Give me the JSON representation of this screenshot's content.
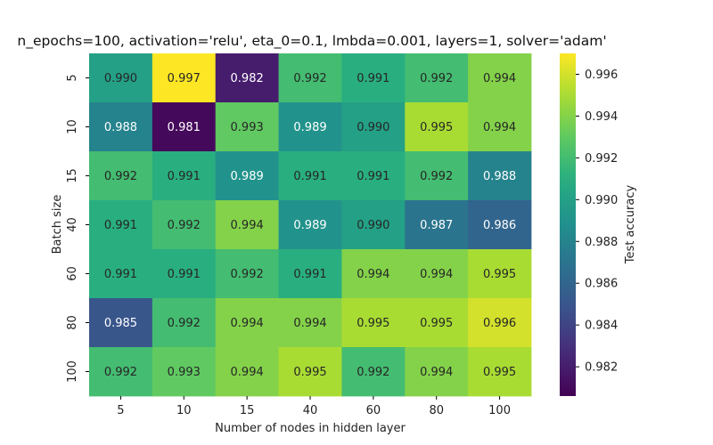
{
  "chart_data": {
    "type": "heatmap",
    "title": "n_epochs=100, activation='relu', eta_0=0.1, lmbda=0.001, layers=1, solver='adam'",
    "xlabel": "Number of nodes in hidden layer",
    "ylabel": "Batch size",
    "colorbar_label": "Test accuracy",
    "x": [
      "5",
      "10",
      "15",
      "40",
      "60",
      "80",
      "100"
    ],
    "y": [
      "5",
      "10",
      "15",
      "40",
      "60",
      "80",
      "100"
    ],
    "values": [
      [
        0.99,
        0.997,
        0.982,
        0.992,
        0.991,
        0.992,
        0.994
      ],
      [
        0.988,
        0.981,
        0.993,
        0.989,
        0.99,
        0.995,
        0.994
      ],
      [
        0.992,
        0.991,
        0.989,
        0.991,
        0.991,
        0.992,
        0.988
      ],
      [
        0.991,
        0.992,
        0.994,
        0.989,
        0.99,
        0.987,
        0.986
      ],
      [
        0.991,
        0.991,
        0.992,
        0.991,
        0.994,
        0.994,
        0.995
      ],
      [
        0.985,
        0.992,
        0.994,
        0.994,
        0.995,
        0.995,
        0.996
      ],
      [
        0.992,
        0.993,
        0.994,
        0.995,
        0.992,
        0.994,
        0.995
      ]
    ],
    "value_format": "3 decimals",
    "colormap": "viridis",
    "vmin": 0.9806,
    "vmax": 0.997,
    "colorbar_ticks": [
      0.982,
      0.984,
      0.986,
      0.988,
      0.99,
      0.992,
      0.994,
      0.996
    ],
    "colorbar_tick_labels": [
      "0.982",
      "0.984",
      "0.986",
      "0.988",
      "0.990",
      "0.992",
      "0.994",
      "0.996"
    ],
    "grid": false,
    "colorbar_position": "right"
  }
}
